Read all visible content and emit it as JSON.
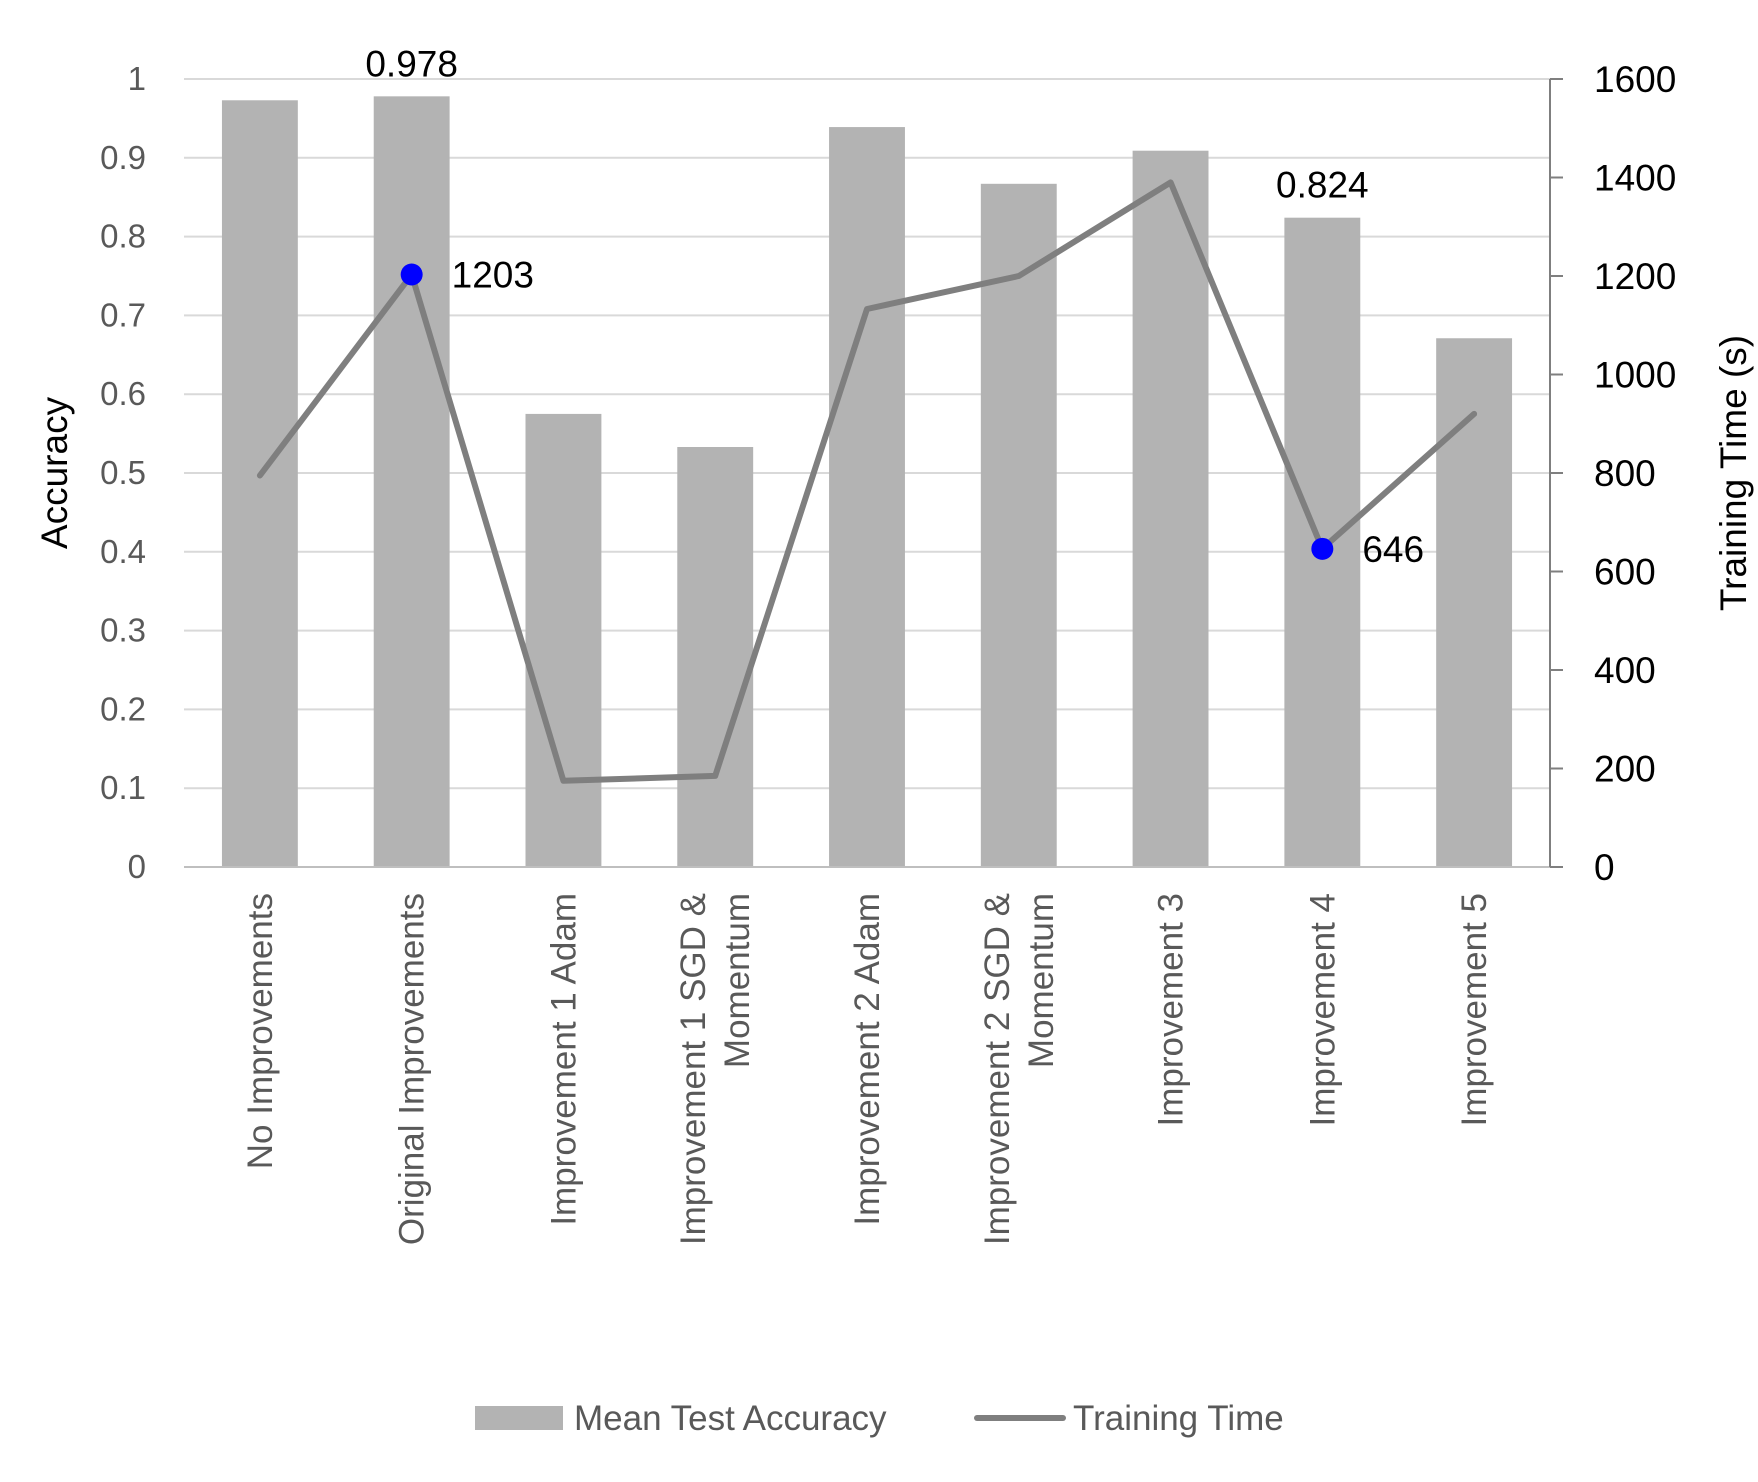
{
  "chart_data": {
    "type": "bar",
    "categories": [
      [
        "No Improvements"
      ],
      [
        "Original Improvements"
      ],
      [
        "Improvement 1 Adam"
      ],
      [
        "Improvement 1 SGD &",
        "Momentum"
      ],
      [
        "Improvement 2 Adam"
      ],
      [
        "Improvement 2 SGD &",
        "Momentum"
      ],
      [
        "Improvement 3"
      ],
      [
        "Improvement 4"
      ],
      [
        "Improvement 5"
      ]
    ],
    "series": [
      {
        "name": "Mean Test Accuracy",
        "type": "bar",
        "axis": "left",
        "color": "#b3b3b3",
        "values": [
          0.973,
          0.978,
          0.575,
          0.533,
          0.939,
          0.867,
          0.909,
          0.824,
          0.671
        ]
      },
      {
        "name": "Training Time",
        "type": "line",
        "axis": "right",
        "color": "#7f7f7f",
        "values": [
          795,
          1203,
          175,
          185,
          1133,
          1200,
          1390,
          646,
          920
        ]
      }
    ],
    "left_axis": {
      "label": "Accuracy",
      "ylim": [
        0,
        1
      ],
      "ticks": [
        "0",
        "0.1",
        "0.2",
        "0.3",
        "0.4",
        "0.5",
        "0.6",
        "0.7",
        "0.8",
        "0.9",
        "1"
      ]
    },
    "right_axis": {
      "label": "Training Time (s)",
      "ylim": [
        0,
        1600
      ],
      "ticks": [
        "0",
        "200",
        "400",
        "600",
        "800",
        "1000",
        "1200",
        "1400",
        "1600"
      ]
    },
    "bar_labels": [
      {
        "index": 1,
        "text": "0.978"
      },
      {
        "index": 7,
        "text": "0.824"
      }
    ],
    "line_markers": [
      {
        "index": 1,
        "text": "1203",
        "color": "#0000ff"
      },
      {
        "index": 7,
        "text": "646",
        "color": "#0000ff"
      }
    ],
    "grid": true,
    "legend_position": "bottom"
  }
}
